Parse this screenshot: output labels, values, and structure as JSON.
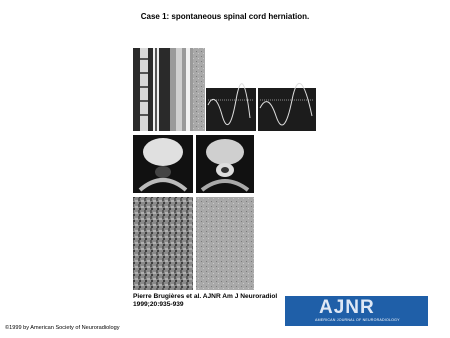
{
  "header": {
    "title": "Case 1: spontaneous spinal cord herniation."
  },
  "citation": "Pierre Brugières et al. AJNR Am J Neuroradiol 1999;20:935-939",
  "logo": {
    "mark": "AJNR",
    "subtitle": "AMERICAN JOURNAL OF NEURORADIOLOGY"
  },
  "footer": {
    "copyright": "©1999 by American Society of Neuroradiology"
  }
}
